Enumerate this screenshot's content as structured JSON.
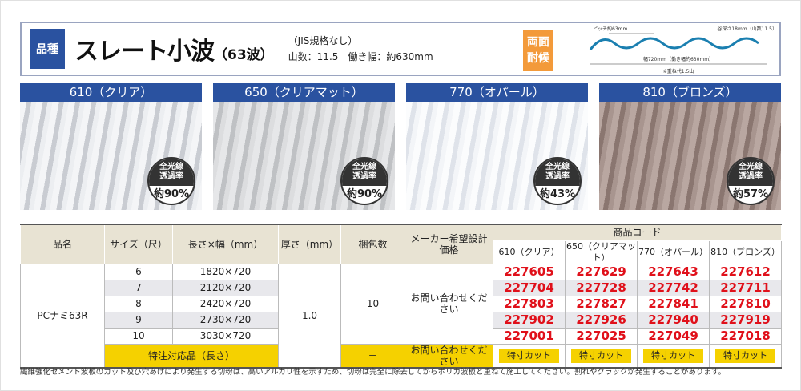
{
  "header": {
    "kind_label": "品種",
    "title": "スレート小波",
    "title_sub": "（63波）",
    "spec_line1": "（JIS規格なし）",
    "spec_line2": "山数：11.5　働き幅：約630mm",
    "badge_line1": "両面",
    "badge_line2": "耐候",
    "diagram": {
      "pitch": "ピッチ約63mm",
      "depth": "谷深さ18mm（山数11.5）",
      "width": "幅720mm（働き幅約630mm）",
      "overlap": "※重ね代1.5山"
    }
  },
  "panels": [
    {
      "label": "610（クリア）",
      "badge": "全光線透過率",
      "value": "約90%",
      "color": "#d8dade"
    },
    {
      "label": "650（クリアマット）",
      "badge": "全光線透過率",
      "value": "約90%",
      "color": "#cfd0d2"
    },
    {
      "label": "770（オパール）",
      "badge": "全光線透過率",
      "value": "約43%",
      "color": "#eef0f4"
    },
    {
      "label": "810（ブロンズ）",
      "badge": "全光線透過率",
      "value": "約57%",
      "color": "#a08c86"
    }
  ],
  "table": {
    "headers": {
      "name": "品名",
      "size": "サイズ（尺）",
      "dims": "長さ×幅（mm）",
      "thickness": "厚さ（mm）",
      "pack": "梱包数",
      "price": "メーカー希望設計価格",
      "code": "商品コード",
      "variants": [
        "610（クリア）",
        "650（クリアマット）",
        "770（オパール）",
        "810（ブロンズ）"
      ]
    },
    "product": "PCナミ63R",
    "thickness": "1.0",
    "pack": "10",
    "price": "お問い合わせください",
    "rows": [
      {
        "size": "6",
        "dims": "1820×720",
        "codes": [
          "227605",
          "227629",
          "227643",
          "227612"
        ]
      },
      {
        "size": "7",
        "dims": "2120×720",
        "codes": [
          "227704",
          "227728",
          "227742",
          "227711"
        ]
      },
      {
        "size": "8",
        "dims": "2420×720",
        "codes": [
          "227803",
          "227827",
          "227841",
          "227810"
        ]
      },
      {
        "size": "9",
        "dims": "2730×720",
        "codes": [
          "227902",
          "227926",
          "227940",
          "227919"
        ]
      },
      {
        "size": "10",
        "dims": "3030×720",
        "codes": [
          "227001",
          "227025",
          "227049",
          "227018"
        ]
      }
    ],
    "special": {
      "label": "特注対応品（長さ）",
      "pack": "－",
      "price": "お問い合わせください",
      "cut": "特寸カット"
    }
  },
  "note": "繊維強化セメント波板のカット及び穴あけにより発生する切粉は、高いアルカリ性を示すため、切粉は完全に除去してからポリカ波板と重ねて施工してください。割れやクラックが発生することがあります。"
}
